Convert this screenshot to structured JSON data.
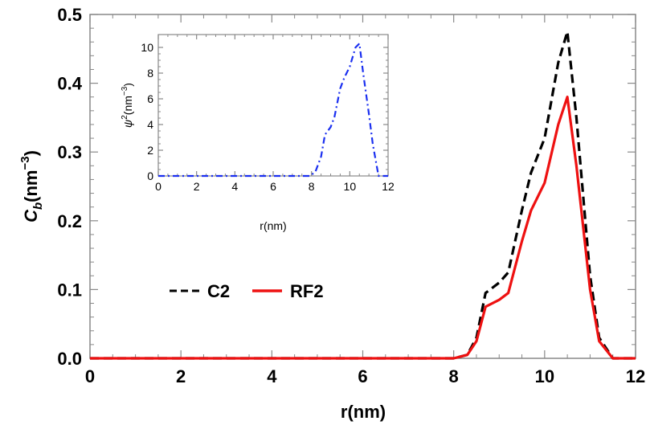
{
  "chart_data": [
    {
      "type": "line",
      "xlabel": "r(nm)",
      "ylabel_base": "C",
      "ylabel_sub": "b",
      "ylabel_unit": "(nm",
      "ylabel_exp": "−3",
      "ylabel_close": ")",
      "xlim": [
        0,
        12
      ],
      "ylim": [
        0,
        0.5
      ],
      "xticks": [
        "0",
        "2",
        "4",
        "6",
        "8",
        "10",
        "12"
      ],
      "yticks": [
        "0.0",
        "0.1",
        "0.2",
        "0.3",
        "0.4",
        "0.5"
      ],
      "grid": false,
      "legend_position": "lower-left",
      "series": [
        {
          "name": "C2",
          "color": "#000000",
          "style": "dashed",
          "x": [
            0,
            8.0,
            8.3,
            8.5,
            8.7,
            9.0,
            9.2,
            9.5,
            9.7,
            10.0,
            10.3,
            10.5,
            10.7,
            11.0,
            11.2,
            11.5,
            12
          ],
          "y": [
            0,
            0,
            0.005,
            0.03,
            0.095,
            0.11,
            0.125,
            0.215,
            0.27,
            0.32,
            0.43,
            0.475,
            0.35,
            0.12,
            0.03,
            0,
            0
          ]
        },
        {
          "name": "RF2",
          "color": "#ee1111",
          "style": "solid",
          "x": [
            0,
            8.0,
            8.3,
            8.5,
            8.7,
            9.0,
            9.2,
            9.5,
            9.7,
            10.0,
            10.3,
            10.5,
            10.7,
            11.0,
            11.2,
            11.5,
            12
          ],
          "y": [
            0,
            0,
            0.005,
            0.025,
            0.075,
            0.085,
            0.095,
            0.17,
            0.215,
            0.255,
            0.34,
            0.38,
            0.28,
            0.1,
            0.025,
            0,
            0
          ]
        }
      ]
    },
    {
      "type": "line",
      "xlabel": "r(nm)",
      "ylabel_base": "ψ",
      "ylabel_exp1": "2",
      "ylabel_unit": "(nm",
      "ylabel_exp": "−3",
      "ylabel_close": ")",
      "xlim": [
        0,
        12
      ],
      "ylim": [
        0,
        11
      ],
      "xticks": [
        "0",
        "2",
        "4",
        "6",
        "8",
        "10",
        "12"
      ],
      "yticks": [
        "0",
        "2",
        "4",
        "6",
        "8",
        "10"
      ],
      "grid": false,
      "series": [
        {
          "color": "#1a2ff0",
          "style": "dash-dot",
          "x": [
            0,
            7.9,
            8.2,
            8.5,
            8.7,
            9.0,
            9.2,
            9.5,
            9.7,
            10.0,
            10.3,
            10.5,
            10.7,
            11.0,
            11.2,
            11.5,
            12
          ],
          "y": [
            0,
            0,
            0.3,
            1.5,
            3.2,
            3.8,
            4.6,
            6.8,
            7.6,
            8.5,
            10.0,
            10.3,
            8.0,
            4.8,
            2.5,
            0,
            0
          ]
        }
      ]
    }
  ]
}
